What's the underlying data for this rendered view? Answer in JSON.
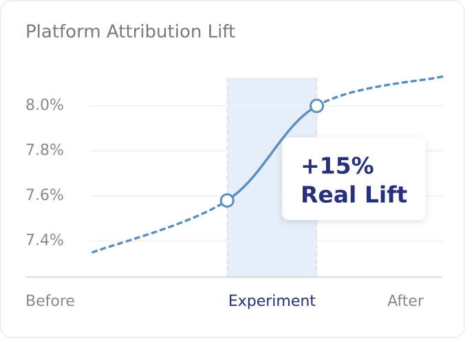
{
  "chart_data": {
    "type": "line",
    "title": "Platform Attribution Lift",
    "x": [
      -1.5,
      0,
      1,
      2.4
    ],
    "series": [
      {
        "color": "#5b8fc0",
        "values": [
          7.35,
          7.58,
          8.0,
          8.13
        ]
      }
    ],
    "xlim": [
      -2.25,
      2.4
    ],
    "ylim": [
      7.24,
      8.2
    ],
    "yticks": [
      {
        "value": 7.4,
        "label": "7.4%"
      },
      {
        "value": 7.6,
        "label": "7.6%"
      },
      {
        "value": 7.8,
        "label": "7.8%"
      },
      {
        "value": 8.0,
        "label": "8.0%"
      }
    ],
    "grid": true,
    "x_labels": [
      "Before",
      "Experiment",
      "After"
    ],
    "highlight": {
      "xlim": [
        0,
        1
      ],
      "color": "#e6eefa"
    },
    "annotation": [
      "+15%",
      "Real Lift"
    ]
  }
}
